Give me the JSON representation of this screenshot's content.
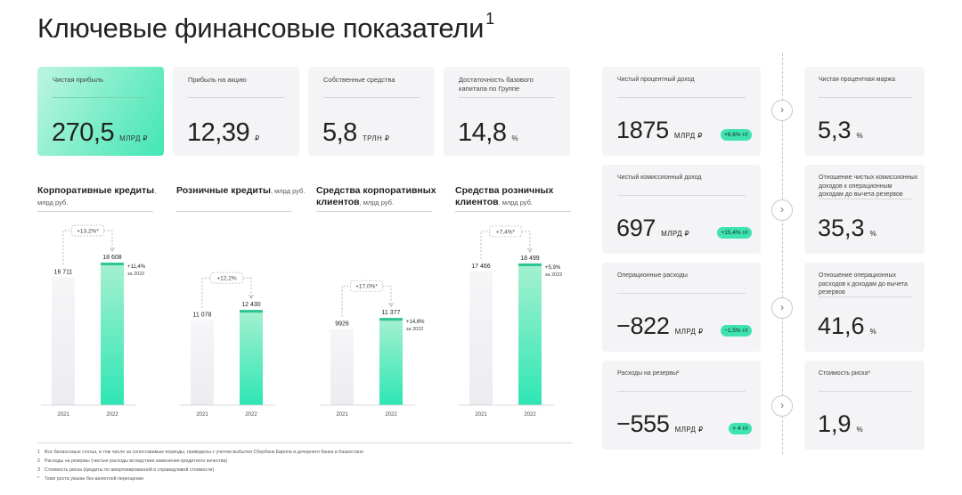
{
  "title": "Ключевые финансовые показатели",
  "title_sup": "1",
  "kpis": [
    {
      "label": "Чистая прибыль",
      "value": "270,5",
      "unit": "МЛРД ₽"
    },
    {
      "label": "Прибыль на акцию",
      "value": "12,39",
      "unit": "₽"
    },
    {
      "label": "Собственные средства",
      "value": "5,8",
      "unit": "ТРЛН ₽"
    },
    {
      "label": "Достаточность базового капитала по Группе",
      "value": "14,8",
      "unit": "%"
    }
  ],
  "chart_headers": [
    {
      "title": "Корпоративные кредиты",
      "unit": ", млрд руб."
    },
    {
      "title": "Розничные кредиты",
      "unit": ", млрд руб."
    },
    {
      "title": "Средства корпоративных клиентов",
      "unit": ", млрд руб."
    },
    {
      "title": "Средства розничных клиентов",
      "unit": ", млрд руб."
    }
  ],
  "chart_data": [
    {
      "type": "bar",
      "title": "Корпоративные кредиты, млрд руб.",
      "categories": [
        "2021",
        "2022"
      ],
      "values": [
        16711,
        18608
      ],
      "value_labels": [
        "16 711",
        "18 608"
      ],
      "growth": "+13,2%*",
      "change": "+11,4%",
      "change_sub": "за 2022"
    },
    {
      "type": "bar",
      "title": "Розничные кредиты, млрд руб.",
      "categories": [
        "2021",
        "2022"
      ],
      "values": [
        11078,
        12430
      ],
      "value_labels": [
        "11 078",
        "12 430"
      ],
      "growth": "+12,2%",
      "change": "",
      "change_sub": ""
    },
    {
      "type": "bar",
      "title": "Средства корпоративных клиентов, млрд руб.",
      "categories": [
        "2021",
        "2022"
      ],
      "values": [
        9926,
        11377
      ],
      "value_labels": [
        "9926",
        "11 377"
      ],
      "growth": "+17,0%*",
      "change": "+14,6%",
      "change_sub": "за 2022"
    },
    {
      "type": "bar",
      "title": "Средства розничных клиентов, млрд руб.",
      "categories": [
        "2021",
        "2022"
      ],
      "values": [
        17466,
        18499
      ],
      "value_labels": [
        "17 466",
        "18 499"
      ],
      "growth": "+7,4%*",
      "change": "+5,9%",
      "change_sub": "за 2022"
    }
  ],
  "income_cards": [
    {
      "label": "Чистый процентный доход",
      "value": "1875",
      "unit": "МЛРД ₽",
      "badge": "+6,6% г/г"
    },
    {
      "label": "Чистый комиссионный доход",
      "value": "697",
      "unit": "МЛРД ₽",
      "badge": "+15,4% г/г"
    },
    {
      "label": "Операционные расходы",
      "value": "−822",
      "unit": "МЛРД ₽",
      "badge": "−1,5% г/г"
    },
    {
      "label": "Расходы на резервы²",
      "value": "−555",
      "unit": "МЛРД ₽",
      "badge": "× 4 г/г"
    }
  ],
  "ratio_cards": [
    {
      "label": "Чистая процентная маржа",
      "value": "5,3",
      "unit": "%"
    },
    {
      "label": "Отношение чистых комиссионных доходов к операционным доходам до вычета резервов",
      "value": "35,3",
      "unit": "%"
    },
    {
      "label": "Отношение операционных расходов к доходам до вычета резервов",
      "value": "41,6",
      "unit": "%"
    },
    {
      "label": "Стоимость риска³",
      "value": "1,9",
      "unit": "%"
    }
  ],
  "footnotes": [
    {
      "n": "1",
      "text": "Все балансовые статьи, в том числе за сопоставимые периоды, приведены с учетом выбытия Сбербанк Европа и дочернего банка в Казахстане"
    },
    {
      "n": "2",
      "text": "Расходы на резервы (чистые расходы вследствие изменения кредитного качества)"
    },
    {
      "n": "3",
      "text": "Стоимость риска (кредиты по амортизированной и справедливой стоимости)"
    },
    {
      "n": "*",
      "text": "Темп роста указан без валютной переоценки"
    }
  ],
  "colors": {
    "accent": "#3fe3ad",
    "bar_prev": "#ececf1",
    "bar_curr_top": "#a6f0d0",
    "bar_curr_bottom": "#2ee6b4"
  }
}
